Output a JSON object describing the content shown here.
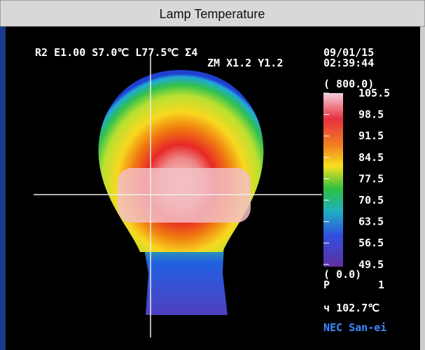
{
  "header": {
    "title": "Lamp Temperature"
  },
  "overlay": {
    "settings": "R2 E1.00 S7.0℃  L77.5℃  Σ4",
    "zoom": "ZM X1.2 Y1.2",
    "date": "09/01/15",
    "time": "02:39:44"
  },
  "scale": {
    "max_range": "( 800.0)",
    "labels": [
      "105.5",
      "98.5",
      "91.5",
      "84.5",
      "77.5",
      "70.5",
      "63.5",
      "56.5",
      "49.5"
    ],
    "min_range": "( 0.0)",
    "p_label": "P",
    "p_value": "1"
  },
  "cursor_reading": "ч 102.7℃",
  "brand": "NEC San-ei"
}
